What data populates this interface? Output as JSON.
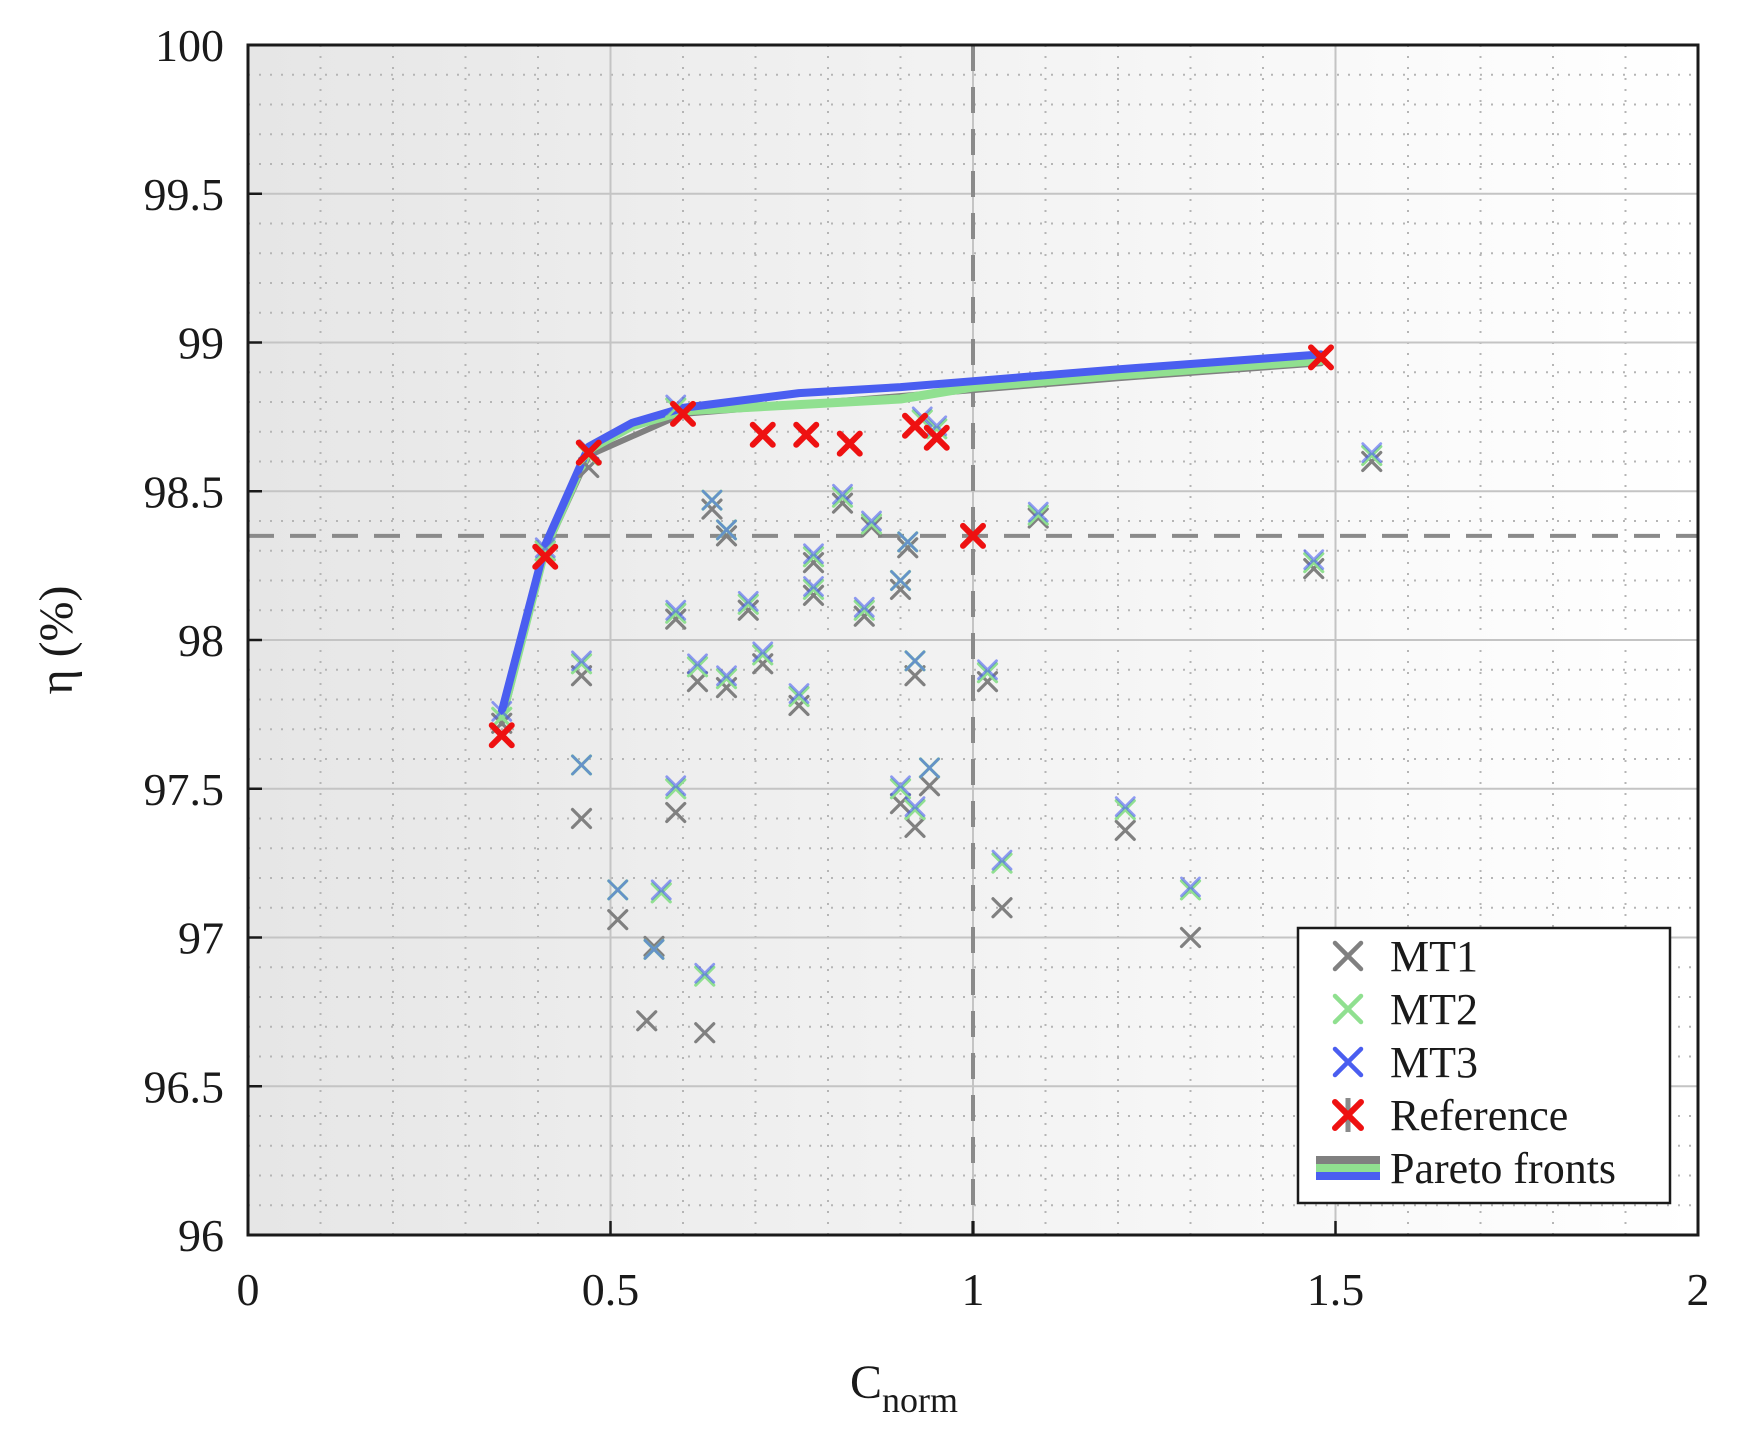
{
  "chart_data": {
    "type": "scatter",
    "xlabel": "C",
    "xlabel_subscript": "norm",
    "ylabel": "η (%)",
    "xlim": [
      0,
      2
    ],
    "ylim": [
      96,
      100
    ],
    "x_ticks": [
      "0",
      "0.5",
      "1",
      "1.5",
      "2"
    ],
    "x_tick_values": [
      0,
      0.5,
      1,
      1.5,
      2
    ],
    "y_ticks": [
      "96",
      "96.5",
      "97",
      "97.5",
      "98",
      "98.5",
      "99",
      "99.5",
      "100"
    ],
    "y_tick_values": [
      96,
      96.5,
      97,
      97.5,
      98,
      98.5,
      99,
      99.5,
      100
    ],
    "grid": true,
    "minor_grid": true,
    "reference_lines": {
      "vertical_x": 1.0,
      "horizontal_y": 98.35
    },
    "legend_position": "bottom-right",
    "colors": {
      "MT1": "#808080",
      "MT2": "#90e090",
      "MT3": "#4a5ef0",
      "Reference": "#ee1111",
      "ref_line": "#8a8a8a"
    },
    "series": [
      {
        "name": "MT1",
        "marker": "x",
        "points": [
          [
            0.35,
            97.72
          ],
          [
            0.41,
            98.3
          ],
          [
            0.47,
            98.58
          ],
          [
            0.46,
            97.88
          ],
          [
            0.46,
            97.4
          ],
          [
            0.51,
            97.06
          ],
          [
            0.55,
            96.72
          ],
          [
            0.56,
            96.97
          ],
          [
            0.59,
            98.07
          ],
          [
            0.59,
            97.42
          ],
          [
            0.62,
            97.86
          ],
          [
            0.63,
            96.68
          ],
          [
            0.64,
            98.44
          ],
          [
            0.66,
            98.35
          ],
          [
            0.66,
            97.84
          ],
          [
            0.69,
            98.1
          ],
          [
            0.71,
            97.92
          ],
          [
            0.76,
            97.78
          ],
          [
            0.78,
            98.26
          ],
          [
            0.78,
            98.15
          ],
          [
            0.82,
            98.46
          ],
          [
            0.85,
            98.08
          ],
          [
            0.86,
            98.38
          ],
          [
            0.9,
            98.17
          ],
          [
            0.91,
            98.31
          ],
          [
            0.9,
            97.45
          ],
          [
            0.92,
            97.37
          ],
          [
            0.92,
            97.88
          ],
          [
            0.94,
            97.51
          ],
          [
            1.02,
            97.86
          ],
          [
            1.04,
            97.1
          ],
          [
            1.09,
            98.41
          ],
          [
            1.21,
            97.36
          ],
          [
            1.3,
            97.0
          ],
          [
            1.47,
            98.24
          ],
          [
            1.55,
            98.6
          ]
        ]
      },
      {
        "name": "MT2",
        "marker": "x",
        "points": [
          [
            0.35,
            97.74
          ],
          [
            0.41,
            98.3
          ],
          [
            0.47,
            98.62
          ],
          [
            0.46,
            97.92
          ],
          [
            0.46,
            97.58
          ],
          [
            0.51,
            97.16
          ],
          [
            0.56,
            96.96
          ],
          [
            0.57,
            97.15
          ],
          [
            0.59,
            98.09
          ],
          [
            0.59,
            97.5
          ],
          [
            0.62,
            97.91
          ],
          [
            0.63,
            96.87
          ],
          [
            0.64,
            98.47
          ],
          [
            0.66,
            98.37
          ],
          [
            0.66,
            97.87
          ],
          [
            0.69,
            98.12
          ],
          [
            0.71,
            97.95
          ],
          [
            0.76,
            97.81
          ],
          [
            0.78,
            98.28
          ],
          [
            0.78,
            98.17
          ],
          [
            0.82,
            98.48
          ],
          [
            0.85,
            98.1
          ],
          [
            0.86,
            98.39
          ],
          [
            0.9,
            98.2
          ],
          [
            0.91,
            98.33
          ],
          [
            0.9,
            97.5
          ],
          [
            0.92,
            97.43
          ],
          [
            0.92,
            97.93
          ],
          [
            0.94,
            97.57
          ],
          [
            1.02,
            97.89
          ],
          [
            1.04,
            97.25
          ],
          [
            1.09,
            98.42
          ],
          [
            1.21,
            97.43
          ],
          [
            1.3,
            97.16
          ],
          [
            1.47,
            98.26
          ],
          [
            1.55,
            98.62
          ],
          [
            0.59,
            98.78
          ],
          [
            0.93,
            98.74
          ],
          [
            0.95,
            98.71
          ]
        ]
      },
      {
        "name": "MT3",
        "marker": "x",
        "points": [
          [
            0.35,
            97.76
          ],
          [
            0.41,
            98.31
          ],
          [
            0.47,
            98.64
          ],
          [
            0.46,
            97.93
          ],
          [
            0.46,
            97.58
          ],
          [
            0.51,
            97.16
          ],
          [
            0.56,
            96.96
          ],
          [
            0.57,
            97.16
          ],
          [
            0.59,
            98.1
          ],
          [
            0.59,
            97.51
          ],
          [
            0.62,
            97.92
          ],
          [
            0.63,
            96.88
          ],
          [
            0.64,
            98.47
          ],
          [
            0.66,
            98.37
          ],
          [
            0.66,
            97.88
          ],
          [
            0.69,
            98.13
          ],
          [
            0.71,
            97.96
          ],
          [
            0.76,
            97.82
          ],
          [
            0.78,
            98.29
          ],
          [
            0.78,
            98.18
          ],
          [
            0.82,
            98.49
          ],
          [
            0.85,
            98.11
          ],
          [
            0.86,
            98.4
          ],
          [
            0.9,
            98.2
          ],
          [
            0.91,
            98.33
          ],
          [
            0.9,
            97.51
          ],
          [
            0.92,
            97.44
          ],
          [
            0.92,
            97.93
          ],
          [
            0.94,
            97.57
          ],
          [
            1.02,
            97.9
          ],
          [
            1.04,
            97.26
          ],
          [
            1.09,
            98.43
          ],
          [
            1.21,
            97.44
          ],
          [
            1.3,
            97.17
          ],
          [
            1.47,
            98.27
          ],
          [
            1.55,
            98.63
          ],
          [
            0.59,
            98.79
          ],
          [
            0.93,
            98.75
          ],
          [
            0.95,
            98.72
          ]
        ]
      },
      {
        "name": "Reference",
        "marker": "x",
        "points": [
          [
            0.35,
            97.68
          ],
          [
            0.41,
            98.28
          ],
          [
            0.47,
            98.63
          ],
          [
            0.6,
            98.76
          ],
          [
            0.71,
            98.69
          ],
          [
            0.77,
            98.69
          ],
          [
            0.83,
            98.66
          ],
          [
            0.92,
            98.72
          ],
          [
            0.95,
            98.68
          ],
          [
            1.0,
            98.35
          ],
          [
            1.48,
            98.95
          ]
        ]
      }
    ],
    "pareto_fronts": [
      {
        "name": "MT1",
        "points": [
          [
            0.35,
            97.72
          ],
          [
            0.41,
            98.3
          ],
          [
            0.47,
            98.62
          ],
          [
            0.6,
            98.76
          ],
          [
            0.8,
            98.8
          ],
          [
            1.0,
            98.84
          ],
          [
            1.2,
            98.88
          ],
          [
            1.48,
            98.93
          ]
        ]
      },
      {
        "name": "MT2",
        "points": [
          [
            0.35,
            97.74
          ],
          [
            0.41,
            98.31
          ],
          [
            0.47,
            98.64
          ],
          [
            0.53,
            98.72
          ],
          [
            0.6,
            98.77
          ],
          [
            0.75,
            98.79
          ],
          [
            0.9,
            98.81
          ],
          [
            1.0,
            98.85
          ],
          [
            1.2,
            98.89
          ],
          [
            1.48,
            98.94
          ]
        ]
      },
      {
        "name": "MT3",
        "points": [
          [
            0.35,
            97.76
          ],
          [
            0.41,
            98.32
          ],
          [
            0.47,
            98.65
          ],
          [
            0.53,
            98.73
          ],
          [
            0.6,
            98.78
          ],
          [
            0.76,
            98.83
          ],
          [
            0.9,
            98.85
          ],
          [
            1.0,
            98.87
          ],
          [
            1.2,
            98.91
          ],
          [
            1.48,
            98.96
          ]
        ]
      }
    ],
    "legend": [
      "MT1",
      "MT2",
      "MT3",
      "Reference",
      "Pareto fronts"
    ]
  }
}
